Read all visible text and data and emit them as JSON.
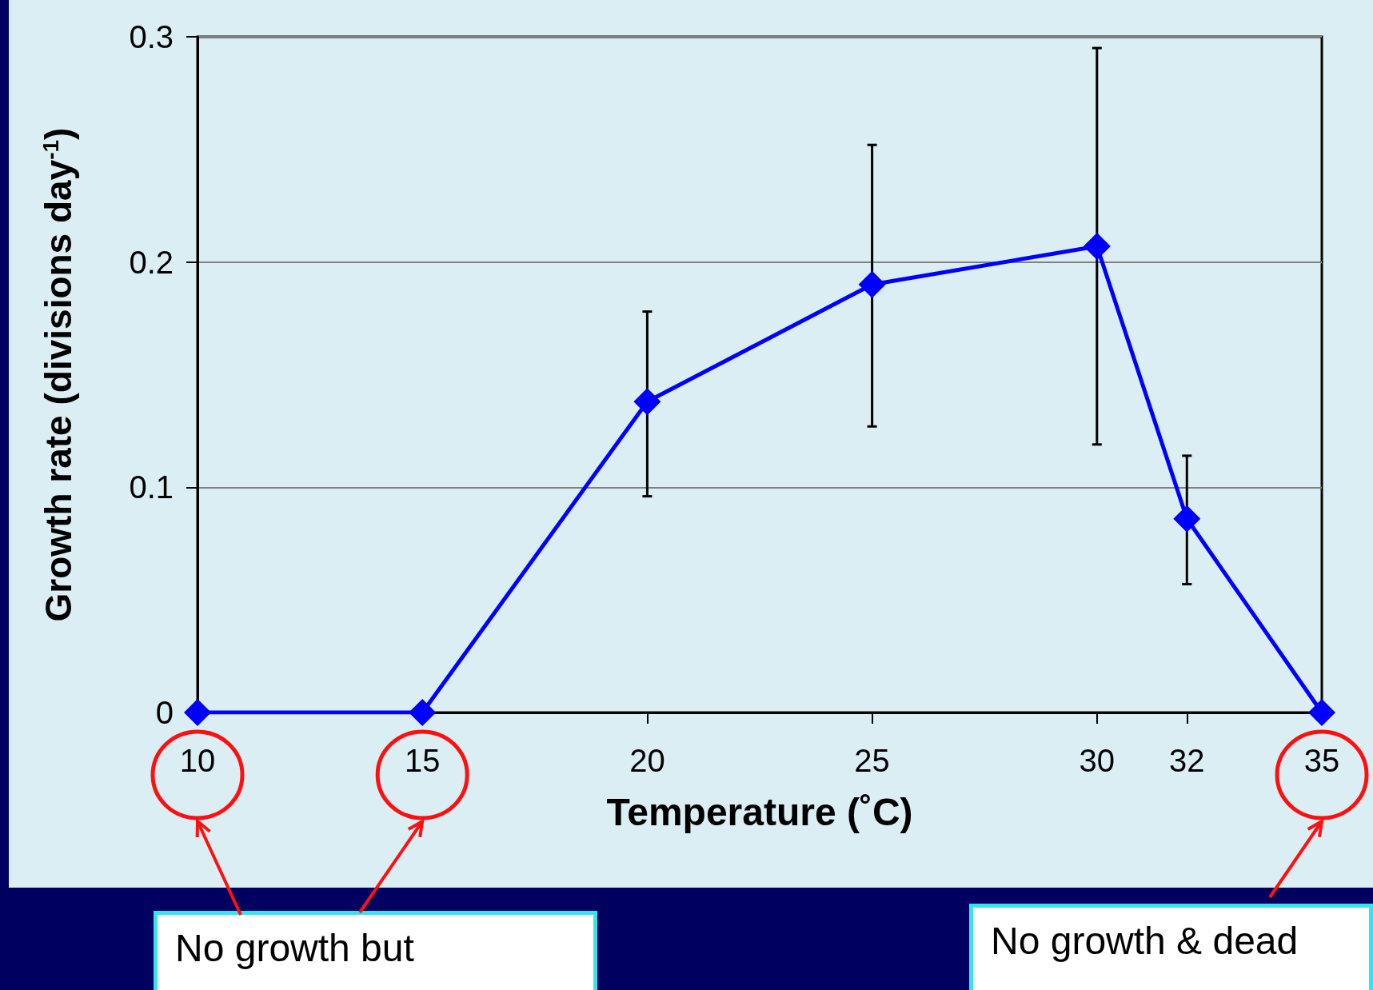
{
  "chart_data": {
    "type": "line",
    "xlabel": "Temperature (˚C)",
    "ylabel": "Growth rate (divisions day$^{-1}$)",
    "x": [
      10,
      15,
      20,
      25,
      30,
      32,
      35
    ],
    "series": [
      {
        "color": "#0000ff",
        "values": [
          0,
          0,
          0.138,
          0.19,
          0.207,
          0.086,
          0
        ],
        "errors": [
          null,
          null,
          [
            0.096,
            0.178
          ],
          [
            0.127,
            0.252
          ],
          [
            0.119,
            0.295
          ],
          [
            0.057,
            0.114
          ],
          null
        ]
      }
    ],
    "xlim": [
      10,
      35
    ],
    "xticks": [
      10,
      15,
      20,
      25,
      30,
      32,
      35
    ],
    "ylim": [
      0,
      0.3
    ],
    "yticks": [
      0,
      0.1,
      0.2,
      0.3
    ],
    "grid": "y",
    "marker": "diamond",
    "line_style": "solid",
    "annotations": [
      "No growth but",
      "No growth & dead"
    ]
  }
}
